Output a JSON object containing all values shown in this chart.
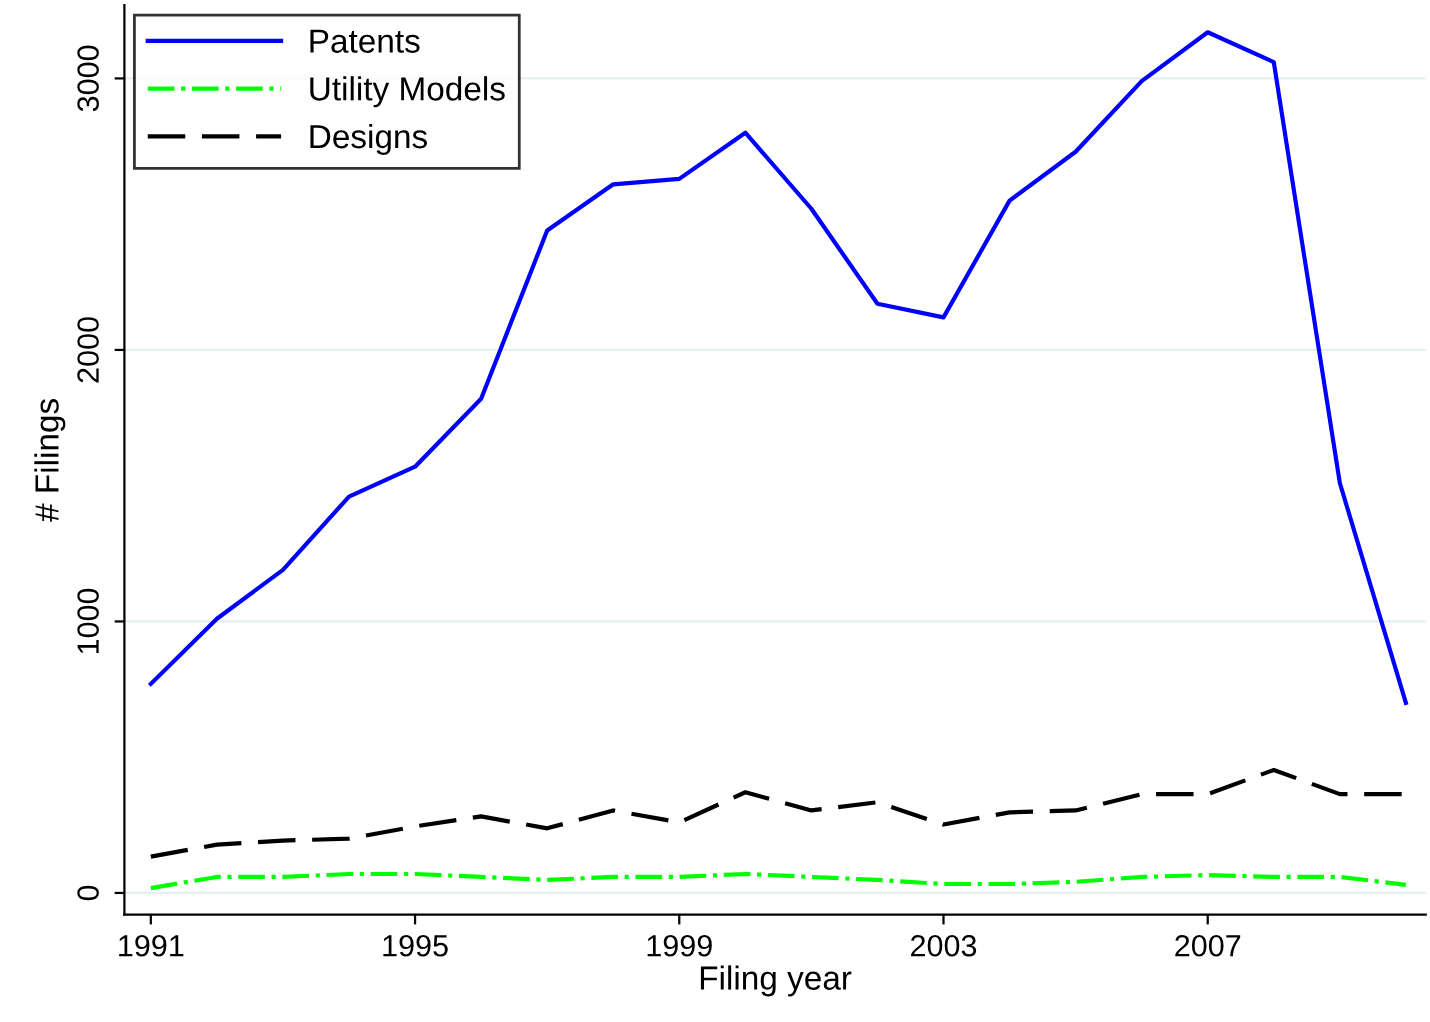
{
  "chart_data": {
    "type": "line",
    "xlabel": "Filing year",
    "ylabel": "# Filings",
    "x": [
      1991,
      1992,
      1993,
      1994,
      1995,
      1996,
      1997,
      1998,
      1999,
      2000,
      2001,
      2002,
      2003,
      2004,
      2005,
      2006,
      2007,
      2008,
      2009,
      2010
    ],
    "series": [
      {
        "name": "Patents",
        "color": "#0000ff",
        "line_style": "solid",
        "values": [
          770,
          1010,
          1190,
          1460,
          1570,
          1820,
          2440,
          2610,
          2630,
          2800,
          2520,
          2170,
          2120,
          2550,
          2730,
          2990,
          3170,
          3060,
          1510,
          700
        ]
      },
      {
        "name": "Utility Models",
        "color": "#00ff00",
        "line_style": "dashdot",
        "values": [
          18,
          59,
          59,
          70,
          70,
          59,
          48,
          59,
          59,
          70,
          59,
          48,
          33,
          33,
          41,
          59,
          66,
          59,
          59,
          30
        ]
      },
      {
        "name": "Designs",
        "color": "#000000",
        "line_style": "dashed",
        "values": [
          134,
          178,
          193,
          200,
          245,
          282,
          238,
          304,
          260,
          371,
          304,
          334,
          252,
          297,
          304,
          364,
          364,
          453,
          364,
          364
        ]
      }
    ],
    "xlim": [
      1990.6,
      2010.3
    ],
    "xticks": [
      1991,
      1995,
      1999,
      2003,
      2007
    ],
    "ylim": [
      -80,
      3270
    ],
    "yticks": [
      0,
      1000,
      2000,
      3000
    ],
    "grid": "y",
    "legend": "top left"
  }
}
